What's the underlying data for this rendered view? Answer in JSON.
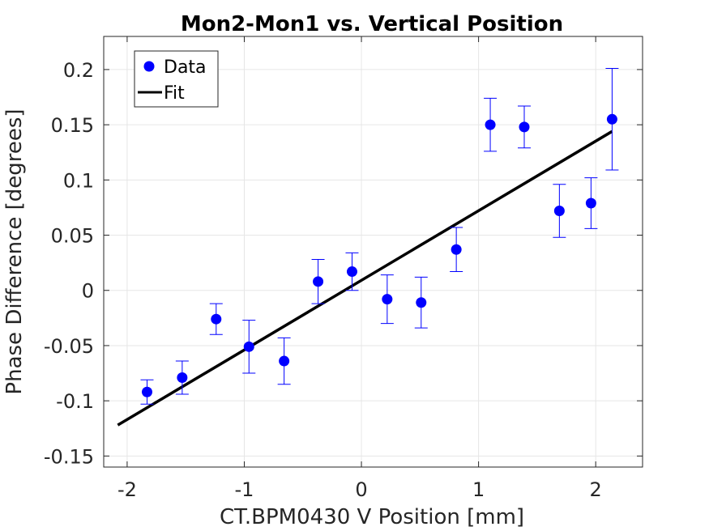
{
  "chart_data": {
    "type": "scatter",
    "title": "Mon2-Mon1 vs. Vertical Position",
    "xlabel": "CT.BPM0430 V Position [mm]",
    "ylabel": "Phase Difference [degrees]",
    "xlim": [
      -2.2,
      2.4
    ],
    "ylim": [
      -0.16,
      0.23
    ],
    "xticks": [
      -2,
      -1,
      0,
      1,
      2
    ],
    "xtick_labels": [
      "-2",
      "-1",
      "0",
      "1",
      "2"
    ],
    "yticks": [
      -0.15,
      -0.1,
      -0.05,
      0,
      0.05,
      0.1,
      0.15,
      0.2
    ],
    "ytick_labels": [
      "-0.15",
      "-0.1",
      "-0.05",
      "0",
      "0.05",
      "0.1",
      "0.15",
      "0.2"
    ],
    "grid": true,
    "legend_position": "top-left",
    "series": [
      {
        "name": "Data",
        "kind": "errorbar",
        "color": "#0000ff",
        "x": [
          -1.83,
          -1.53,
          -1.24,
          -0.96,
          -0.66,
          -0.37,
          -0.08,
          0.22,
          0.51,
          0.81,
          1.1,
          1.39,
          1.69,
          1.96,
          2.14
        ],
        "y": [
          -0.092,
          -0.079,
          -0.026,
          -0.051,
          -0.064,
          0.008,
          0.017,
          -0.008,
          -0.011,
          0.037,
          0.15,
          0.148,
          0.072,
          0.079,
          0.155
        ],
        "err": [
          0.011,
          0.015,
          0.014,
          0.024,
          0.021,
          0.02,
          0.017,
          0.022,
          0.023,
          0.02,
          0.024,
          0.019,
          0.024,
          0.023,
          0.046
        ]
      },
      {
        "name": "Fit",
        "kind": "line",
        "color": "#000000",
        "x": [
          -2.08,
          2.14
        ],
        "y": [
          -0.122,
          0.144
        ]
      }
    ]
  }
}
